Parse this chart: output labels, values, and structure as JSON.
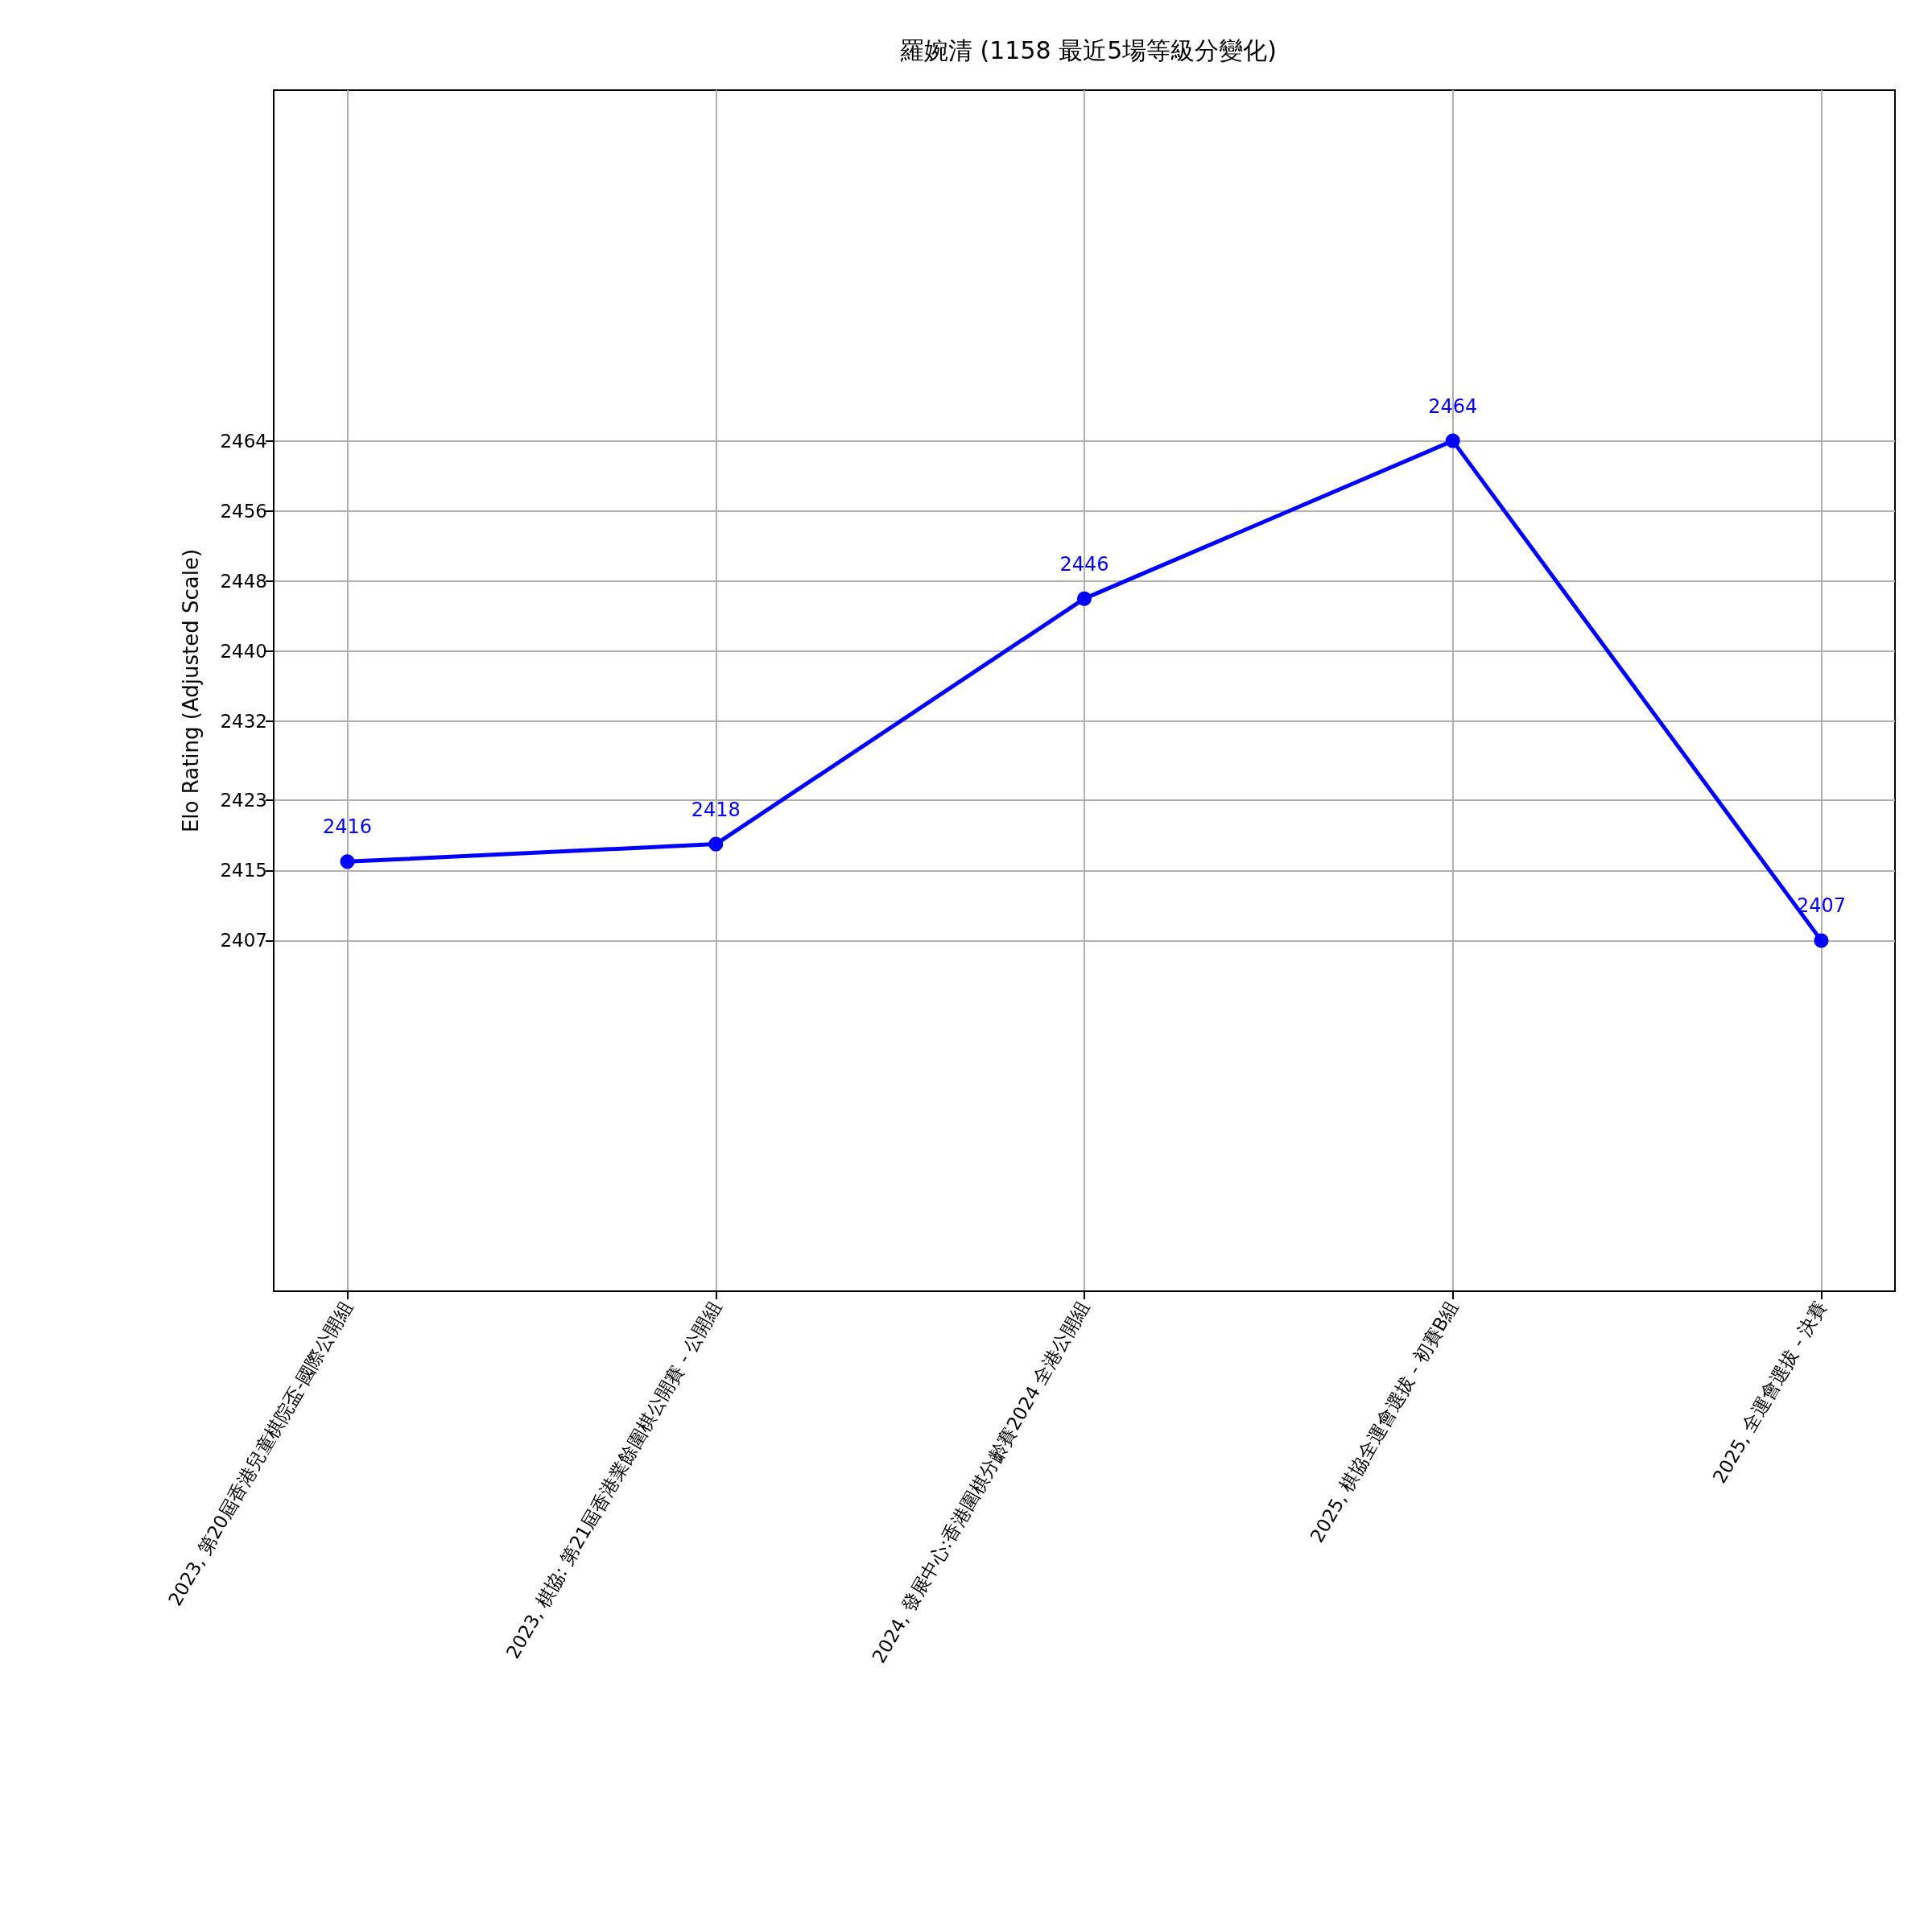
{
  "chart_data": {
    "type": "line",
    "title": "羅婉清 (1158 最近5場等級分變化)",
    "ylabel": "Elo Rating (Adjusted Scale)",
    "categories": [
      "2023, 第20屆香港兒童棋院盃-國際公開組",
      "2023, 棋協: 第21屆香港業餘圍棋公開賽 - 公開組",
      "2024, 發展中心:香港圍棋分齡賽2024 全港公開組",
      "2025, 棋協全運會選拔 - 初賽B組",
      "2025, 全運會選拔 - 決賽"
    ],
    "series": [
      {
        "color": "#0000ff",
        "values": [
          2416,
          2418,
          2446,
          2464,
          2407
        ]
      }
    ],
    "ylim": [
      2367,
      2504
    ],
    "yticks": [
      2407,
      2415,
      2423,
      2432,
      2440,
      2448,
      2456,
      2464
    ],
    "data_labels": true,
    "grid": true,
    "marker": "circle",
    "line_style": "solid"
  }
}
